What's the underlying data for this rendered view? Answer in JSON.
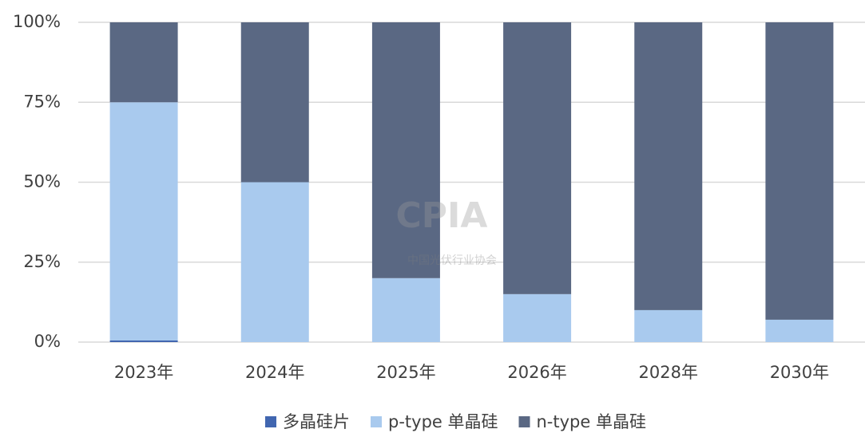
{
  "chart_data": {
    "type": "stacked_bar",
    "categories": [
      "2023年",
      "2024年",
      "2025年",
      "2026年",
      "2028年",
      "2030年"
    ],
    "series": [
      {
        "name": "多晶硅片",
        "color": "#4166b0",
        "values": [
          0.5,
          0,
          0,
          0,
          0,
          0
        ]
      },
      {
        "name": "p-type 单晶硅",
        "color": "#a9caee",
        "values": [
          74.5,
          50,
          20,
          15,
          10,
          7
        ]
      },
      {
        "name": "n-type 单晶硅",
        "color": "#5a6883",
        "values": [
          25,
          50,
          80,
          85,
          90,
          93
        ]
      }
    ],
    "ylim": [
      0,
      100
    ],
    "yticks": [
      {
        "value": 0,
        "label": "0%"
      },
      {
        "value": 25,
        "label": "25%"
      },
      {
        "value": 50,
        "label": "50%"
      },
      {
        "value": 75,
        "label": "75%"
      },
      {
        "value": 100,
        "label": "100%"
      }
    ],
    "grid": true,
    "legend": "bottom",
    "watermark": {
      "logo": "CPIA",
      "name": "中国光伏行业协会"
    }
  }
}
